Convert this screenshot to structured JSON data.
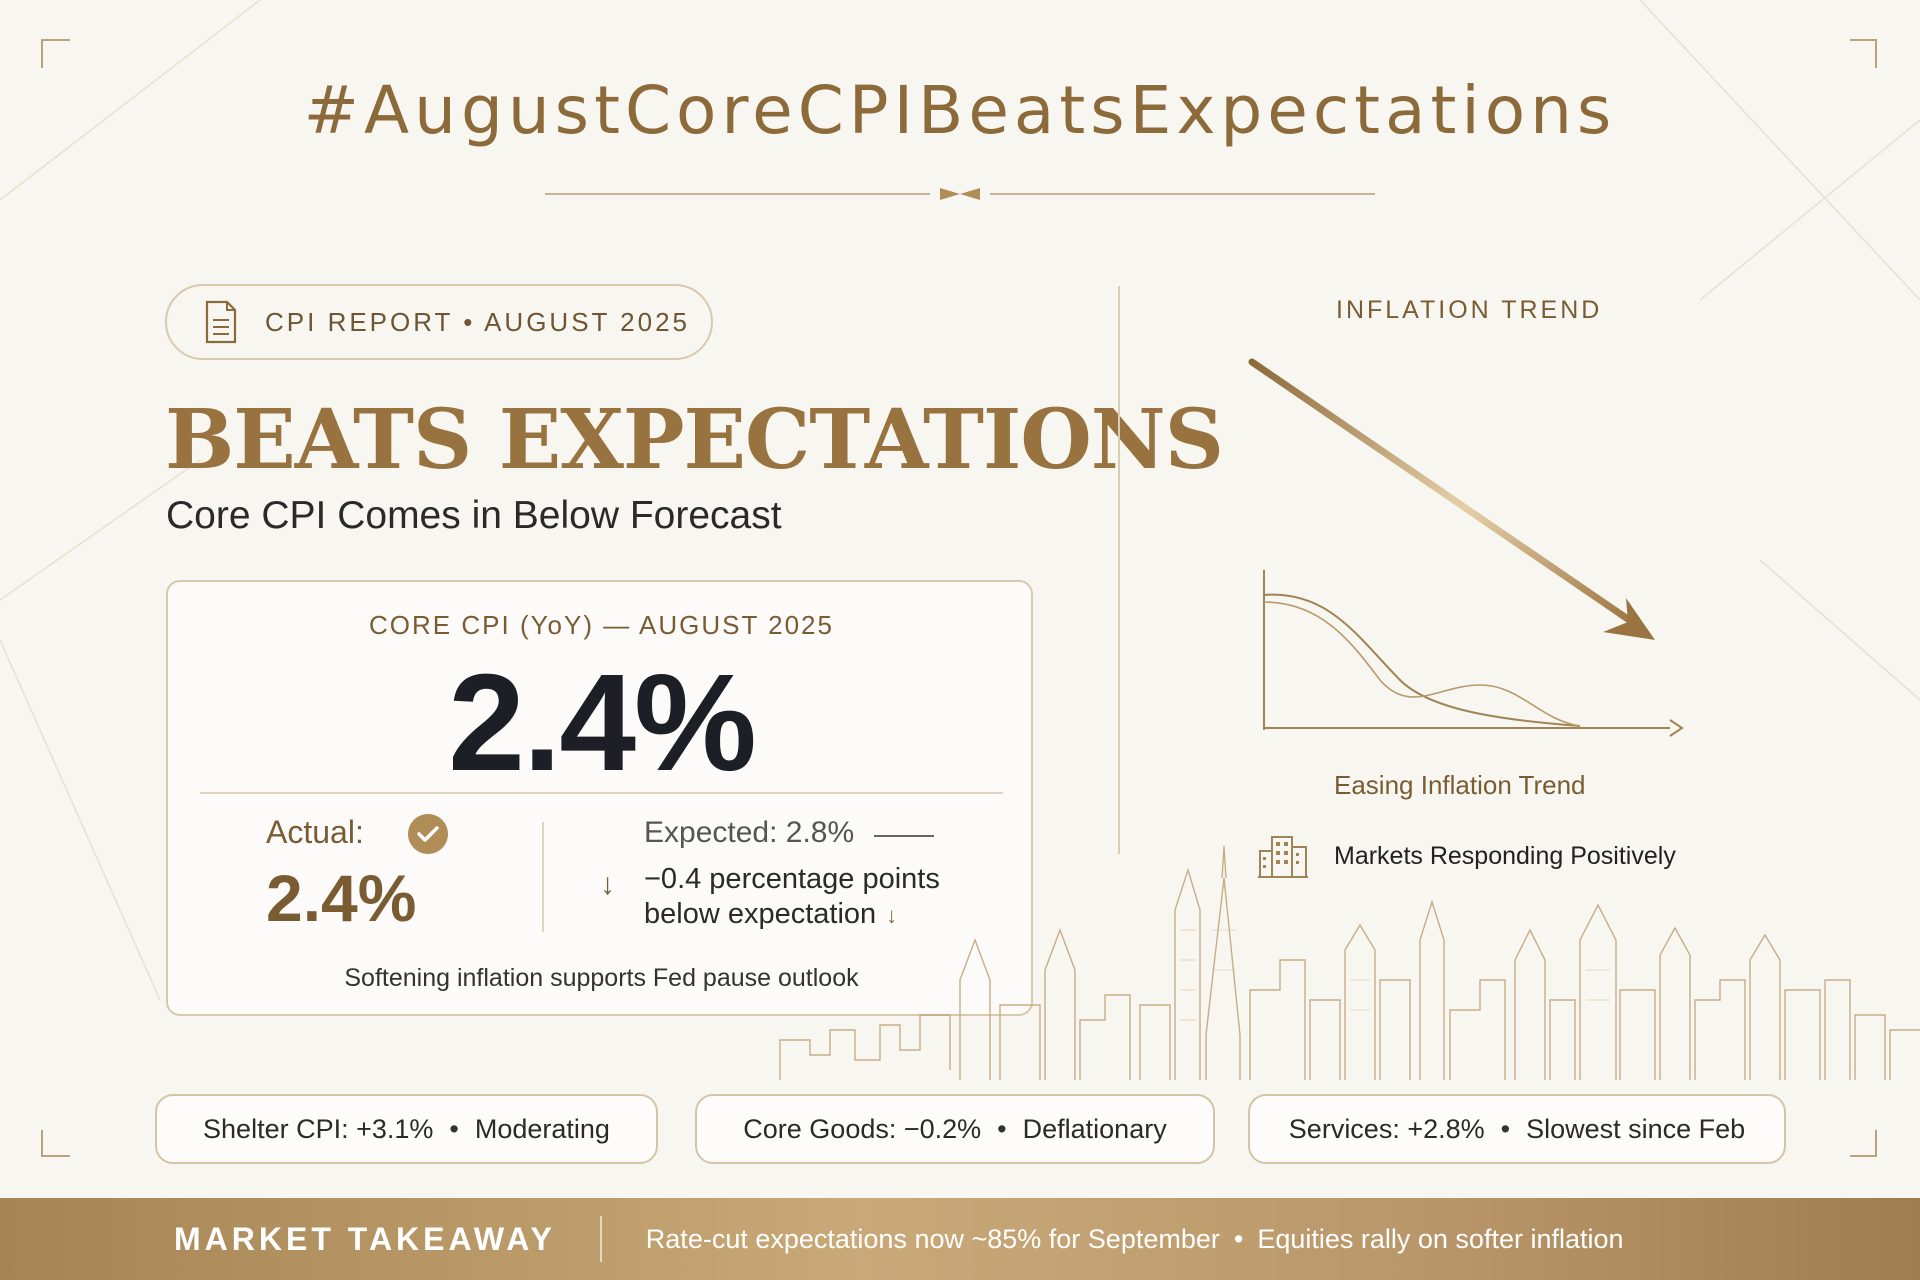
{
  "title": "#AugustCoreCPIBeatsExpectations",
  "report_tag": "CPI REPORT • AUGUST 2025",
  "headline": "BEATS EXPECTATIONS",
  "subheadline": "Core CPI Comes in Below Forecast",
  "card": {
    "label": "CORE CPI (YoY) — AUGUST 2025",
    "big_value": "2.4%",
    "actual_label": "Actual:",
    "actual_value": "2.4%",
    "expected": "Expected: 2.8%",
    "delta_line1": "−0.4 percentage points",
    "delta_line2": "below expectation",
    "note": "Softening inflation supports Fed pause outlook"
  },
  "trend": {
    "title": "INFLATION TREND",
    "caption": "Easing Inflation Trend",
    "markets": "Markets Responding Positively"
  },
  "stats": [
    {
      "name": "Shelter CPI: +3.1%",
      "detail": "Moderating"
    },
    {
      "name": "Core Goods: −0.2%",
      "detail": "Deflationary"
    },
    {
      "name": "Services: +2.8%",
      "detail": "Slowest since Feb"
    }
  ],
  "footer": {
    "label": "MARKET TAKEAWAY",
    "text1": "Rate-cut expectations now ~85% for September",
    "text2": "Equities rally on softer inflation"
  },
  "colors": {
    "gold": "#8c6a3a",
    "dark": "#1d1f26",
    "background": "#f8f6f1"
  },
  "chart_data": {
    "type": "table",
    "title": "CORE CPI (YoY) — AUGUST 2025",
    "rows": [
      {
        "metric": "Actual",
        "value": "2.4%"
      },
      {
        "metric": "Expected",
        "value": "2.8%"
      },
      {
        "metric": "Difference",
        "value": "−0.4 percentage points"
      },
      {
        "metric": "Shelter CPI",
        "value": "+3.1%"
      },
      {
        "metric": "Core Goods",
        "value": "−0.2%"
      },
      {
        "metric": "Services",
        "value": "+2.8%"
      }
    ]
  }
}
